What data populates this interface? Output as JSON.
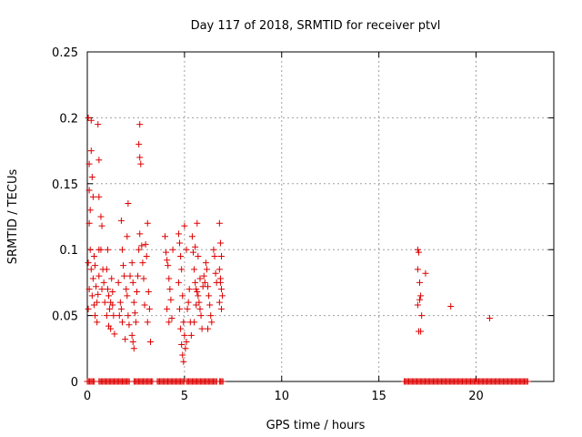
{
  "chart_data": {
    "type": "scatter",
    "title": "Day 117 of 2018, SRMTID for receiver ptvl",
    "xlabel": "GPS time / hours",
    "ylabel": "SRMTID / TECUs",
    "xlim": [
      0,
      24
    ],
    "ylim": [
      0,
      0.25
    ],
    "xticks": [
      0,
      5,
      10,
      15,
      20
    ],
    "yticks": [
      0,
      0.05,
      0.1,
      0.15,
      0.2,
      0.25
    ],
    "grid": true,
    "marker": "+",
    "color": "#dd0000",
    "series": [
      {
        "points": [
          [
            0.05,
            0.2
          ],
          [
            0.1,
            0.165
          ],
          [
            0.1,
            0.145
          ],
          [
            0.15,
            0.13
          ],
          [
            0.2,
            0.198
          ],
          [
            0.2,
            0.175
          ],
          [
            0.25,
            0.155
          ],
          [
            0.3,
            0.14
          ],
          [
            0.1,
            0.12
          ],
          [
            0.15,
            0.1
          ],
          [
            0.05,
            0.09
          ],
          [
            0.2,
            0.085
          ],
          [
            0.1,
            0.07
          ],
          [
            0.25,
            0.065
          ],
          [
            0.05,
            0.055
          ],
          [
            0.3,
            0.078
          ],
          [
            0.35,
            0.095
          ],
          [
            0.4,
            0.088
          ],
          [
            0.45,
            0.072
          ],
          [
            0.5,
            0.06
          ],
          [
            0.55,
            0.066
          ],
          [
            0.6,
            0.1
          ],
          [
            0.6,
            0.08
          ],
          [
            0.5,
            0.045
          ],
          [
            0.35,
            0.058
          ],
          [
            0.4,
            0.05
          ],
          [
            0.55,
            0.195
          ],
          [
            0.6,
            0.168
          ],
          [
            0.6,
            0.14
          ],
          [
            0.7,
            0.125
          ],
          [
            0.75,
            0.118
          ],
          [
            0.7,
            0.1
          ],
          [
            0.8,
            0.085
          ],
          [
            0.75,
            0.07
          ],
          [
            0.85,
            0.075
          ],
          [
            0.9,
            0.06
          ],
          [
            1.0,
            0.085
          ],
          [
            1.05,
            0.07
          ],
          [
            1.1,
            0.065
          ],
          [
            1.15,
            0.055
          ],
          [
            1.2,
            0.06
          ],
          [
            1.0,
            0.05
          ],
          [
            1.1,
            0.042
          ],
          [
            1.25,
            0.078
          ],
          [
            1.3,
            0.068
          ],
          [
            1.35,
            0.05
          ],
          [
            1.4,
            0.036
          ],
          [
            1.2,
            0.04
          ],
          [
            1.05,
            0.1
          ],
          [
            1.3,
            0.058
          ],
          [
            1.6,
            0.075
          ],
          [
            1.7,
            0.06
          ],
          [
            1.75,
            0.055
          ],
          [
            1.8,
            0.045
          ],
          [
            1.85,
            0.088
          ],
          [
            1.9,
            0.08
          ],
          [
            2.0,
            0.07
          ],
          [
            2.05,
            0.065
          ],
          [
            2.1,
            0.05
          ],
          [
            2.15,
            0.043
          ],
          [
            1.75,
            0.122
          ],
          [
            1.8,
            0.1
          ],
          [
            2.1,
            0.135
          ],
          [
            2.05,
            0.11
          ],
          [
            1.65,
            0.05
          ],
          [
            1.95,
            0.032
          ],
          [
            2.2,
            0.08
          ],
          [
            2.3,
            0.09
          ],
          [
            2.35,
            0.075
          ],
          [
            2.4,
            0.06
          ],
          [
            2.45,
            0.052
          ],
          [
            2.5,
            0.045
          ],
          [
            2.3,
            0.035
          ],
          [
            2.35,
            0.03
          ],
          [
            2.4,
            0.025
          ],
          [
            2.55,
            0.068
          ],
          [
            2.6,
            0.08
          ],
          [
            2.65,
            0.1
          ],
          [
            2.7,
            0.195
          ],
          [
            2.65,
            0.18
          ],
          [
            2.7,
            0.17
          ],
          [
            2.75,
            0.165
          ],
          [
            2.7,
            0.112
          ],
          [
            2.8,
            0.103
          ],
          [
            2.85,
            0.09
          ],
          [
            2.9,
            0.078
          ],
          [
            3.0,
            0.104
          ],
          [
            3.05,
            0.095
          ],
          [
            3.1,
            0.12
          ],
          [
            3.15,
            0.068
          ],
          [
            3.2,
            0.055
          ],
          [
            3.1,
            0.045
          ],
          [
            3.25,
            0.03
          ],
          [
            2.95,
            0.058
          ],
          [
            4.0,
            0.11
          ],
          [
            4.05,
            0.098
          ],
          [
            4.1,
            0.092
          ],
          [
            4.15,
            0.088
          ],
          [
            4.2,
            0.078
          ],
          [
            4.25,
            0.07
          ],
          [
            4.3,
            0.062
          ],
          [
            4.1,
            0.055
          ],
          [
            4.35,
            0.048
          ],
          [
            4.2,
            0.045
          ],
          [
            4.4,
            0.1
          ],
          [
            4.7,
            0.112
          ],
          [
            4.75,
            0.105
          ],
          [
            4.8,
            0.095
          ],
          [
            4.85,
            0.085
          ],
          [
            4.7,
            0.075
          ],
          [
            4.9,
            0.065
          ],
          [
            4.75,
            0.055
          ],
          [
            4.95,
            0.045
          ],
          [
            4.8,
            0.04
          ],
          [
            5.0,
            0.035
          ],
          [
            4.85,
            0.028
          ],
          [
            5.05,
            0.025
          ],
          [
            4.9,
            0.02
          ],
          [
            4.95,
            0.015
          ],
          [
            5.1,
            0.03
          ],
          [
            5.15,
            0.055
          ],
          [
            5.2,
            0.06
          ],
          [
            5.25,
            0.07
          ],
          [
            5.3,
            0.045
          ],
          [
            5.35,
            0.035
          ],
          [
            5.0,
            0.118
          ],
          [
            5.1,
            0.1
          ],
          [
            5.4,
            0.11
          ],
          [
            5.45,
            0.098
          ],
          [
            5.5,
            0.085
          ],
          [
            5.55,
            0.075
          ],
          [
            5.6,
            0.07
          ],
          [
            5.65,
            0.068
          ],
          [
            5.7,
            0.065
          ],
          [
            5.75,
            0.06
          ],
          [
            5.8,
            0.055
          ],
          [
            5.85,
            0.05
          ],
          [
            5.5,
            0.045
          ],
          [
            5.9,
            0.04
          ],
          [
            5.6,
            0.058
          ],
          [
            5.95,
            0.072
          ],
          [
            6.0,
            0.08
          ],
          [
            6.05,
            0.075
          ],
          [
            5.7,
            0.095
          ],
          [
            5.8,
            0.078
          ],
          [
            5.65,
            0.12
          ],
          [
            5.55,
            0.102
          ],
          [
            6.1,
            0.09
          ],
          [
            6.15,
            0.085
          ],
          [
            6.2,
            0.072
          ],
          [
            6.25,
            0.065
          ],
          [
            6.3,
            0.058
          ],
          [
            6.35,
            0.05
          ],
          [
            6.4,
            0.045
          ],
          [
            6.5,
            0.1
          ],
          [
            6.55,
            0.095
          ],
          [
            6.6,
            0.082
          ],
          [
            6.65,
            0.075
          ],
          [
            6.2,
            0.04
          ],
          [
            6.8,
            0.12
          ],
          [
            6.85,
            0.105
          ],
          [
            6.9,
            0.095
          ],
          [
            6.8,
            0.085
          ],
          [
            6.85,
            0.075
          ],
          [
            6.9,
            0.07
          ],
          [
            6.95,
            0.065
          ],
          [
            6.8,
            0.06
          ],
          [
            6.9,
            0.055
          ],
          [
            6.85,
            0.078
          ],
          [
            17.0,
            0.1
          ],
          [
            17.05,
            0.098
          ],
          [
            17.0,
            0.085
          ],
          [
            17.1,
            0.075
          ],
          [
            17.15,
            0.065
          ],
          [
            17.0,
            0.058
          ],
          [
            17.1,
            0.062
          ],
          [
            17.2,
            0.05
          ],
          [
            17.05,
            0.038
          ],
          [
            17.15,
            0.038
          ],
          [
            17.4,
            0.082
          ],
          [
            18.7,
            0.057
          ],
          [
            20.7,
            0.048
          ]
        ],
        "zero_x": [
          [
            0.0,
            0.4
          ],
          [
            0.6,
            2.2
          ],
          [
            2.4,
            3.4
          ],
          [
            3.6,
            5.0
          ],
          [
            5.1,
            6.7
          ],
          [
            6.8,
            7.0
          ],
          [
            16.3,
            22.7
          ]
        ]
      }
    ]
  }
}
